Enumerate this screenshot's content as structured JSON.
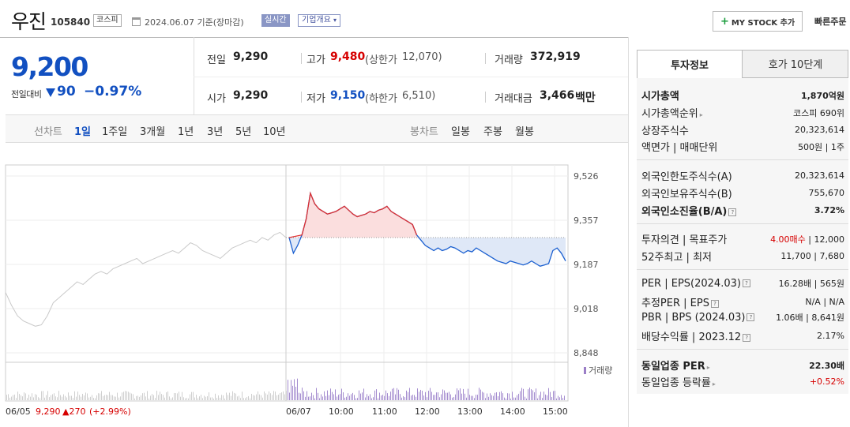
{
  "header": {
    "name": "우진",
    "code": "105840",
    "market": "코스피",
    "date": "2024.06.07 기준(장마감)",
    "realtime": "실시간",
    "company_overview": "기업개요",
    "mystock_label": "MY STOCK 추가",
    "quick_order": "빠른주문"
  },
  "summary": {
    "price": "9,200",
    "change_label": "전일대비",
    "change": "90",
    "change_rate": "−0.97%",
    "prev_close_label": "전일",
    "prev_close": "9,290",
    "high_label": "고가",
    "high": "9,480",
    "upper_limit_label": "(상한가",
    "upper_limit": "12,070)",
    "volume_label": "거래량",
    "volume": "372,919",
    "open_label": "시가",
    "open": "9,290",
    "low_label": "저가",
    "low": "9,150",
    "lower_limit_label": "(하한가",
    "lower_limit": "6,510)",
    "amount_label": "거래대금",
    "amount": "3,466",
    "amount_unit": "백만"
  },
  "chart_tabs": {
    "line_label": "선차트",
    "periods": [
      "1일",
      "1주일",
      "3개월",
      "1년",
      "3년",
      "5년",
      "10년"
    ],
    "candle_label": "봉차트",
    "candles": [
      "일봉",
      "주봉",
      "월봉"
    ]
  },
  "chart_data": {
    "type": "line",
    "y_ticks": [
      "9,526",
      "9,357",
      "9,187",
      "9,018",
      "8,848"
    ],
    "ylim": [
      8848,
      9526
    ],
    "x_ticks": [
      "06/05",
      "06/07",
      "10:00",
      "11:00",
      "12:00",
      "13:00",
      "14:00",
      "15:00"
    ],
    "prev_day_close": 9290,
    "volume_legend": "거래량",
    "footer_date": "06/05",
    "footer_price": "9,290",
    "footer_change": "▲270",
    "footer_rate": "(+2.99%)",
    "series": [
      {
        "values_prev_days": [
          9080,
          9030,
          8990,
          8970,
          8960,
          8950,
          8955,
          8990,
          9040,
          9060,
          9080,
          9100,
          9120,
          9110,
          9130,
          9150,
          9160,
          9150,
          9170,
          9180,
          9190,
          9200,
          9210,
          9190,
          9200,
          9210,
          9220,
          9230,
          9240,
          9230,
          9250,
          9270,
          9260,
          9240,
          9230,
          9220,
          9210,
          9230,
          9250,
          9260,
          9270,
          9280,
          9270,
          9290,
          9280,
          9300,
          9310,
          9290
        ]
      },
      {
        "values_today": [
          9290,
          9230,
          9260,
          9300,
          9360,
          9460,
          9420,
          9400,
          9390,
          9380,
          9385,
          9390,
          9400,
          9410,
          9395,
          9380,
          9370,
          9375,
          9380,
          9390,
          9385,
          9395,
          9400,
          9410,
          9390,
          9380,
          9370,
          9360,
          9350,
          9340,
          9300,
          9280,
          9260,
          9250,
          9240,
          9250,
          9240,
          9245,
          9255,
          9250,
          9240,
          9230,
          9240,
          9235,
          9250,
          9240,
          9230,
          9220,
          9210,
          9200,
          9195,
          9190,
          9200,
          9195,
          9190,
          9185,
          9190,
          9200,
          9190,
          9180,
          9185,
          9190,
          9240,
          9250,
          9230,
          9200
        ]
      }
    ]
  },
  "panel": {
    "tab_info": "투자정보",
    "tab_hoga": "호가 10단계",
    "rows": [
      {
        "k": "시가총액",
        "v": "1,870억원"
      },
      {
        "k": "시가총액순위",
        "v": "코스피 690위"
      },
      {
        "k": "상장주식수",
        "v": "20,323,614"
      },
      {
        "k": "액면가 | 매매단위",
        "v": "500원 | 1주"
      },
      {
        "k": "외국인한도주식수(A)",
        "v": "20,323,614"
      },
      {
        "k": "외국인보유주식수(B)",
        "v": "755,670"
      },
      {
        "k": "외국인소진율(B/A)",
        "v": "3.72%"
      },
      {
        "k": "투자의견 | 목표주가",
        "v1": "4.00매수",
        "v2": " | 12,000"
      },
      {
        "k": "52주최고 | 최저",
        "v": "11,700 | 7,680"
      },
      {
        "k": "PER | EPS(2024.03)",
        "v": "16.28배 | 565원"
      },
      {
        "k": "추정PER | EPS",
        "v": "N/A | N/A"
      },
      {
        "k": "PBR | BPS (2024.03)",
        "v": "1.06배 | 8,641원"
      },
      {
        "k": "배당수익률 | 2023.12",
        "v": "2.17%"
      },
      {
        "k": "동일업종 PER",
        "v": "22.30배"
      },
      {
        "k": "동일업종 등락률",
        "v": "+0.52%"
      }
    ]
  }
}
